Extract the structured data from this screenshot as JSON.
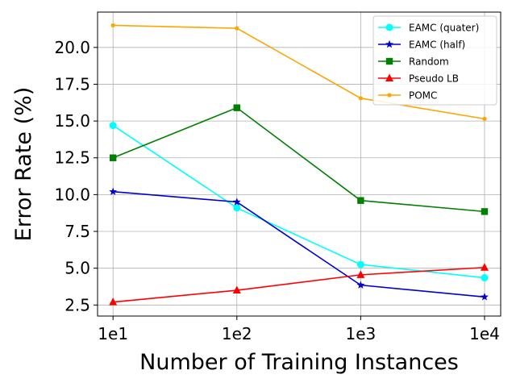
{
  "chart_data": {
    "type": "line",
    "title": "",
    "xlabel": "Number of Training Instances",
    "ylabel": "Error Rate (%)",
    "x": [
      10,
      100,
      1000,
      10000
    ],
    "x_tick_labels": [
      "1e1",
      "1e2",
      "1e3",
      "1e4"
    ],
    "x_scale": "log",
    "xlim": [
      7.5,
      13500
    ],
    "ylim": [
      1.75,
      22.4
    ],
    "y_ticks": [
      2.5,
      5.0,
      7.5,
      10.0,
      12.5,
      15.0,
      17.5,
      20.0
    ],
    "y_tick_labels": [
      "2.5",
      "5.0",
      "7.5",
      "10.0",
      "12.5",
      "15.0",
      "17.5",
      "20.0"
    ],
    "grid": true,
    "legend_position": "top-right",
    "series": [
      {
        "name": "EAMC (quater)",
        "color": "#00ffff",
        "marker": "circle",
        "values": [
          14.7,
          9.1,
          5.25,
          4.35
        ]
      },
      {
        "name": "EAMC (half)",
        "color": "#0000cd",
        "marker": "star",
        "values": [
          10.2,
          9.5,
          3.85,
          3.05
        ]
      },
      {
        "name": "Random",
        "color": "#008000",
        "marker": "square",
        "values": [
          12.5,
          15.9,
          9.6,
          8.85
        ]
      },
      {
        "name": "Pseudo LB",
        "color": "#ff0000",
        "marker": "triangle",
        "values": [
          2.7,
          3.5,
          4.55,
          5.05
        ]
      },
      {
        "name": "POMC",
        "color": "#ffa500",
        "marker": "dot",
        "values": [
          21.5,
          21.3,
          16.55,
          15.15
        ]
      }
    ]
  }
}
